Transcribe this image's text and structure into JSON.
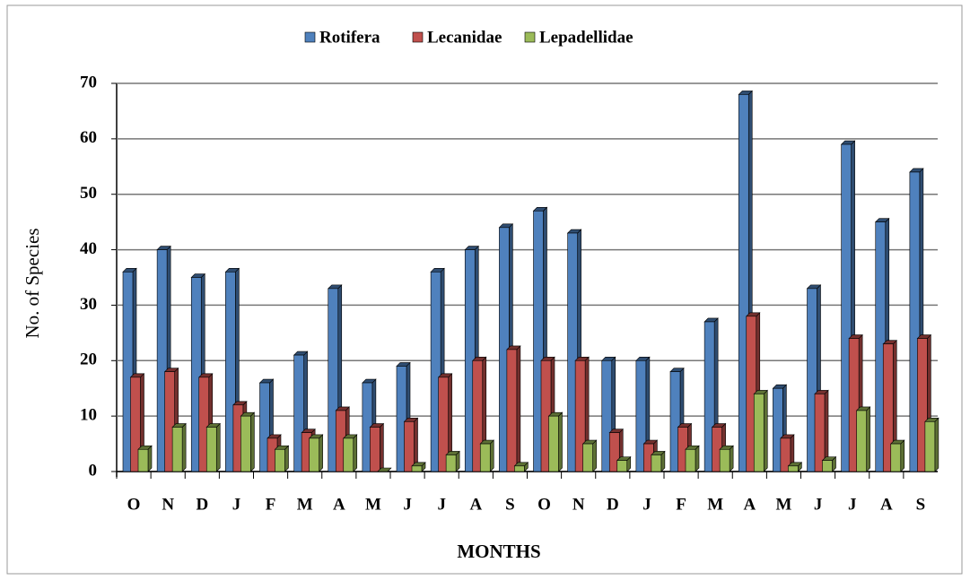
{
  "chart_data": {
    "type": "bar",
    "categories": [
      "O",
      "N",
      "D",
      "J",
      "F",
      "M",
      "A",
      "M",
      "J",
      "J",
      "A",
      "S",
      "O",
      "N",
      "D",
      "J",
      "F",
      "M",
      "A",
      "M",
      "J",
      "J",
      "A",
      "S"
    ],
    "series": [
      {
        "name": "Rotifera",
        "color": "#4f81bd",
        "values": [
          36,
          40,
          35,
          36,
          16,
          21,
          33,
          16,
          19,
          36,
          40,
          44,
          47,
          43,
          20,
          20,
          18,
          27,
          68,
          15,
          33,
          59,
          45,
          54
        ]
      },
      {
        "name": "Lecanidae",
        "color": "#c0504d",
        "values": [
          17,
          18,
          17,
          12,
          6,
          7,
          11,
          8,
          9,
          17,
          20,
          22,
          20,
          20,
          7,
          5,
          8,
          8,
          28,
          6,
          14,
          24,
          23,
          24
        ]
      },
      {
        "name": "Lepadellidae",
        "color": "#9bbb59",
        "values": [
          4,
          8,
          8,
          10,
          4,
          6,
          6,
          0,
          1,
          3,
          5,
          1,
          10,
          5,
          2,
          3,
          4,
          4,
          14,
          1,
          2,
          11,
          5,
          9
        ]
      }
    ],
    "x_label": "MONTHS",
    "y_label": "No. of Species",
    "ylim": [
      0,
      70
    ],
    "yticks": [
      0,
      10,
      20,
      30,
      40,
      50,
      60,
      70
    ],
    "grid": true,
    "legend": "top"
  }
}
